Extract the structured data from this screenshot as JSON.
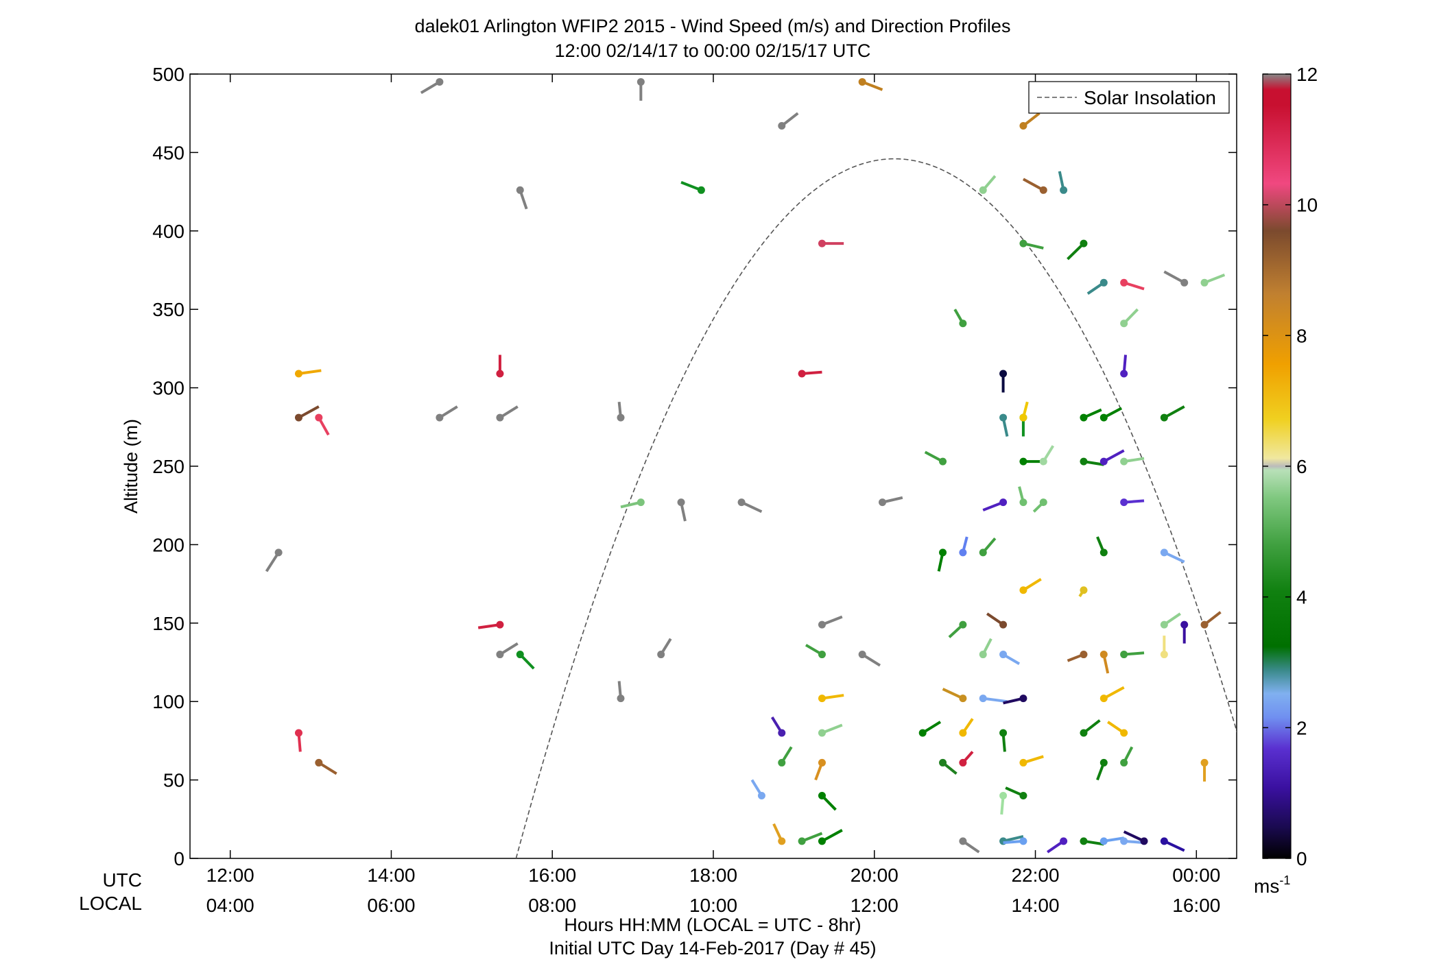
{
  "chart_data": {
    "type": "scatter",
    "title": "dalek01 Arlington WFIP2 2015 - Wind Speed (m/s) and Direction Profiles",
    "subtitle": "12:00 02/14/17 to 00:00 02/15/17  UTC",
    "ylabel": "Altitude (m)",
    "xlabel_lines": [
      "Hours HH:MM  (LOCAL = UTC - 8hr)",
      "Initial UTC Day 14-Feb-2017 (Day # 45)"
    ],
    "xrow_labels": [
      "UTC",
      "LOCAL"
    ],
    "x_ticks_utc": [
      "12:00",
      "14:00",
      "16:00",
      "18:00",
      "20:00",
      "22:00",
      "00:00"
    ],
    "x_ticks_local": [
      "04:00",
      "06:00",
      "08:00",
      "10:00",
      "12:00",
      "14:00",
      "16:00"
    ],
    "x_tick_hours": [
      12,
      14,
      16,
      18,
      20,
      22,
      24
    ],
    "xlim_hours": [
      11.5,
      24.5
    ],
    "y_ticks": [
      0,
      50,
      100,
      150,
      200,
      250,
      300,
      350,
      400,
      450,
      500
    ],
    "ylim": [
      0,
      500
    ],
    "grid": false,
    "legend": {
      "position": "top-right",
      "entries": [
        "Solar Insolation"
      ]
    },
    "solar_curve": {
      "style": "dashed",
      "color": "#555555",
      "start_hour": 15.55,
      "peak_hour": 20.25,
      "end_hour": 24.95,
      "peak_altitude": 446
    },
    "colorbar": {
      "label": "ms-1",
      "label_main": "ms",
      "label_sup": "-1",
      "ticks": [
        0,
        2,
        4,
        6,
        8,
        10,
        12
      ],
      "range": [
        0,
        12
      ]
    },
    "series_format": "each point: [hour_utc, altitude_m, barb_dx_hours, barb_dy_m, color]",
    "points": [
      [
        12.6,
        195,
        -0.15,
        -12,
        "#808080"
      ],
      [
        12.85,
        309,
        0.28,
        2,
        "#f0a800"
      ],
      [
        12.85,
        281,
        0.25,
        7,
        "#7b4a2e"
      ],
      [
        13.1,
        281,
        0.12,
        -11,
        "#e84060"
      ],
      [
        12.85,
        80,
        0.02,
        -12,
        "#e03050"
      ],
      [
        13.1,
        61,
        0.22,
        -7,
        "#9a6030"
      ],
      [
        14.6,
        495,
        -0.23,
        -7,
        "#808080"
      ],
      [
        14.6,
        281,
        0.22,
        7,
        "#808080"
      ],
      [
        15.35,
        309,
        0.0,
        12,
        "#d02040"
      ],
      [
        15.35,
        281,
        0.22,
        7,
        "#808080"
      ],
      [
        15.35,
        149,
        -0.27,
        -2,
        "#d02040"
      ],
      [
        15.35,
        130,
        0.22,
        7,
        "#808080"
      ],
      [
        15.6,
        426,
        0.08,
        -12,
        "#808080"
      ],
      [
        15.6,
        130,
        0.17,
        -9,
        "#109020"
      ],
      [
        16.85,
        281,
        -0.02,
        10,
        "#808080"
      ],
      [
        16.85,
        102,
        -0.02,
        11,
        "#808080"
      ],
      [
        17.1,
        227,
        -0.25,
        -3,
        "#7cc47c"
      ],
      [
        17.1,
        495,
        0.0,
        -12,
        "#808080"
      ],
      [
        17.35,
        130,
        0.12,
        10,
        "#808080"
      ],
      [
        17.6,
        227,
        0.05,
        -12,
        "#808080"
      ],
      [
        17.85,
        426,
        -0.25,
        5,
        "#109020"
      ],
      [
        18.35,
        227,
        0.25,
        -6,
        "#808080"
      ],
      [
        18.6,
        40,
        -0.12,
        10,
        "#7aa8f0"
      ],
      [
        18.85,
        80,
        -0.12,
        10,
        "#4a20b0"
      ],
      [
        18.85,
        467,
        0.2,
        8,
        "#808080"
      ],
      [
        18.85,
        61,
        0.12,
        10,
        "#40a040"
      ],
      [
        18.85,
        11,
        -0.1,
        11,
        "#e0a020"
      ],
      [
        19.1,
        309,
        0.25,
        1,
        "#d02040"
      ],
      [
        19.1,
        11,
        0.25,
        5,
        "#40a040"
      ],
      [
        19.35,
        392,
        0.27,
        0,
        "#d04060"
      ],
      [
        19.35,
        149,
        0.25,
        5,
        "#808080"
      ],
      [
        19.35,
        130,
        -0.2,
        6,
        "#40a040"
      ],
      [
        19.35,
        102,
        0.27,
        2,
        "#f0b800"
      ],
      [
        19.35,
        80,
        0.25,
        5,
        "#90d090"
      ],
      [
        19.35,
        61,
        -0.08,
        -11,
        "#d89020"
      ],
      [
        19.35,
        40,
        0.17,
        -9,
        "#008000"
      ],
      [
        19.35,
        11,
        0.25,
        7,
        "#008000"
      ],
      [
        19.85,
        495,
        0.25,
        -5,
        "#c08020"
      ],
      [
        19.85,
        130,
        0.22,
        -7,
        "#808080"
      ],
      [
        20.1,
        227,
        0.25,
        3,
        "#808080"
      ],
      [
        20.6,
        80,
        0.22,
        7,
        "#008000"
      ],
      [
        20.85,
        253,
        -0.22,
        6,
        "#40a040"
      ],
      [
        20.85,
        195,
        -0.05,
        -12,
        "#008000"
      ],
      [
        20.85,
        61,
        0.17,
        -7,
        "#208020"
      ],
      [
        21.1,
        341,
        -0.1,
        9,
        "#40a040"
      ],
      [
        21.1,
        195,
        0.05,
        10,
        "#6080f0"
      ],
      [
        21.1,
        149,
        -0.17,
        -8,
        "#40a040"
      ],
      [
        21.1,
        102,
        -0.25,
        6,
        "#c89020"
      ],
      [
        21.1,
        80,
        0.12,
        9,
        "#f0b800"
      ],
      [
        21.1,
        61,
        0.12,
        7,
        "#d02040"
      ],
      [
        21.1,
        11,
        0.2,
        -7,
        "#808080"
      ],
      [
        21.35,
        426,
        0.15,
        9,
        "#90d090"
      ],
      [
        21.35,
        195,
        0.15,
        9,
        "#40a040"
      ],
      [
        21.35,
        130,
        0.1,
        10,
        "#90d090"
      ],
      [
        21.35,
        102,
        0.3,
        -2,
        "#7aa8f0"
      ],
      [
        21.6,
        309,
        0.0,
        -12,
        "#0a0a40"
      ],
      [
        21.6,
        281,
        0.05,
        -12,
        "#3a8a8a"
      ],
      [
        21.6,
        227,
        -0.25,
        -5,
        "#5020c0"
      ],
      [
        21.6,
        149,
        -0.2,
        7,
        "#7b4a2e"
      ],
      [
        21.6,
        130,
        0.2,
        -6,
        "#7aa8f0"
      ],
      [
        21.6,
        80,
        0.02,
        -12,
        "#108010"
      ],
      [
        21.6,
        40,
        -0.02,
        -12,
        "#a0e0a0"
      ],
      [
        21.6,
        11,
        0.25,
        3,
        "#3a8a8a"
      ],
      [
        21.85,
        467,
        0.2,
        8,
        "#c08020"
      ],
      [
        21.85,
        392,
        0.25,
        -3,
        "#40a040"
      ],
      [
        21.85,
        281,
        0.0,
        -12,
        "#109020"
      ],
      [
        21.85,
        253,
        0.25,
        0,
        "#008000"
      ],
      [
        21.85,
        227,
        -0.05,
        10,
        "#70c070"
      ],
      [
        21.85,
        171,
        0.22,
        7,
        "#f0b800"
      ],
      [
        21.85,
        102,
        -0.25,
        -3,
        "#200a60"
      ],
      [
        21.85,
        61,
        0.25,
        4,
        "#f0b800"
      ],
      [
        21.85,
        40,
        -0.22,
        5,
        "#108010"
      ],
      [
        21.85,
        11,
        -0.25,
        -1,
        "#6aa0f0"
      ],
      [
        21.85,
        281,
        0.05,
        10,
        "#f0c800"
      ],
      [
        22.1,
        426,
        -0.25,
        7,
        "#9a6030"
      ],
      [
        22.1,
        253,
        0.12,
        10,
        "#a0d8a0"
      ],
      [
        22.1,
        227,
        -0.12,
        -6,
        "#70c070"
      ],
      [
        22.35,
        426,
        -0.05,
        12,
        "#3a8a8a"
      ],
      [
        22.35,
        11,
        -0.2,
        -7,
        "#5020c0"
      ],
      [
        22.6,
        392,
        -0.2,
        -10,
        "#108010"
      ],
      [
        22.6,
        281,
        0.22,
        5,
        "#008000"
      ],
      [
        22.6,
        253,
        0.25,
        -2,
        "#108010"
      ],
      [
        22.6,
        171,
        -0.05,
        -4,
        "#e0c020"
      ],
      [
        22.6,
        130,
        -0.2,
        -4,
        "#9a6030"
      ],
      [
        22.6,
        80,
        0.2,
        8,
        "#108010"
      ],
      [
        22.6,
        11,
        0.25,
        -2,
        "#108010"
      ],
      [
        22.85,
        367,
        -0.2,
        -7,
        "#3a8a8a"
      ],
      [
        22.85,
        281,
        0.22,
        6,
        "#008000"
      ],
      [
        22.85,
        253,
        0.25,
        7,
        "#5020c0"
      ],
      [
        22.85,
        195,
        -0.08,
        10,
        "#108010"
      ],
      [
        22.85,
        130,
        0.05,
        -12,
        "#d08a20"
      ],
      [
        22.85,
        102,
        0.25,
        7,
        "#f0b800"
      ],
      [
        22.85,
        61,
        -0.08,
        -11,
        "#108010"
      ],
      [
        22.85,
        11,
        0.25,
        2,
        "#6aa0f0"
      ],
      [
        23.1,
        367,
        0.25,
        -4,
        "#e84060"
      ],
      [
        23.1,
        341,
        0.17,
        9,
        "#90d090"
      ],
      [
        23.1,
        309,
        0.02,
        12,
        "#5020c0"
      ],
      [
        23.1,
        253,
        0.25,
        2,
        "#90d090"
      ],
      [
        23.1,
        227,
        0.25,
        1,
        "#5a30d0"
      ],
      [
        23.1,
        130,
        0.25,
        1,
        "#40a040"
      ],
      [
        23.1,
        80,
        -0.2,
        7,
        "#f0b800"
      ],
      [
        23.1,
        61,
        0.1,
        10,
        "#40a040"
      ],
      [
        23.1,
        11,
        0.25,
        -1,
        "#7aa8f0"
      ],
      [
        23.35,
        11,
        -0.25,
        6,
        "#200a60"
      ],
      [
        23.6,
        281,
        0.25,
        7,
        "#108010"
      ],
      [
        23.6,
        195,
        0.25,
        -6,
        "#7aa8f0"
      ],
      [
        23.6,
        149,
        0.2,
        7,
        "#90d090"
      ],
      [
        23.6,
        130,
        0.0,
        12,
        "#f0e080"
      ],
      [
        23.6,
        11,
        0.25,
        -6,
        "#2a10a0"
      ],
      [
        23.85,
        367,
        -0.25,
        7,
        "#808080"
      ],
      [
        23.85,
        149,
        0.0,
        -12,
        "#3a10a0"
      ],
      [
        24.1,
        367,
        0.25,
        5,
        "#90d090"
      ],
      [
        24.1,
        149,
        0.2,
        8,
        "#9a6030"
      ],
      [
        24.1,
        61,
        0.0,
        -12,
        "#e0a020"
      ]
    ]
  }
}
